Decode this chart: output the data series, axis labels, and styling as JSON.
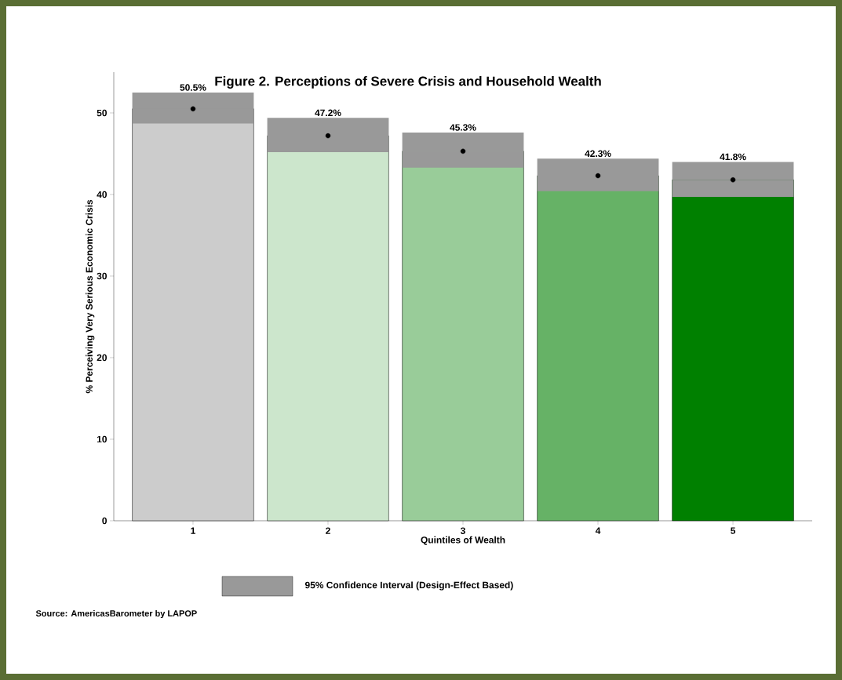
{
  "chart_data": {
    "type": "bar",
    "title": "Figure 2. Perceptions of Severe Crisis and Household Wealth",
    "xlabel": "Quintiles of Wealth",
    "ylabel": "% Perceiving Very Serious Economic Crisis",
    "categories": [
      "1",
      "2",
      "3",
      "4",
      "5"
    ],
    "series": [
      {
        "type": "bar",
        "values": [
          50.5,
          47.2,
          45.3,
          42.3,
          41.8
        ],
        "colors": [
          "#cccccc",
          "#cce6cc",
          "#99cc99",
          "#66b266",
          "#008000"
        ],
        "errors": [
          [
            48.7,
            52.5
          ],
          [
            45.2,
            49.4
          ],
          [
            43.3,
            47.6
          ],
          [
            40.4,
            44.4
          ],
          [
            39.7,
            44.0
          ]
        ],
        "value_labels": [
          "50.5%",
          "47.2%",
          "45.3%",
          "42.3%",
          "41.8%"
        ]
      },
      {
        "type": "scatter",
        "x": [
          "1",
          "2",
          "3",
          "4",
          "5"
        ],
        "values": [
          50.5,
          47.2,
          45.3,
          42.3,
          41.8
        ],
        "color": "#000000",
        "marker": "circle"
      }
    ],
    "ylim": [
      0,
      55
    ],
    "yticks": [
      0,
      10,
      20,
      30,
      40,
      50
    ],
    "annotations": [
      "95% Confidence Interval (Design-Effect Based)",
      "Source: AmericasBarometer by LAPOP"
    ]
  }
}
